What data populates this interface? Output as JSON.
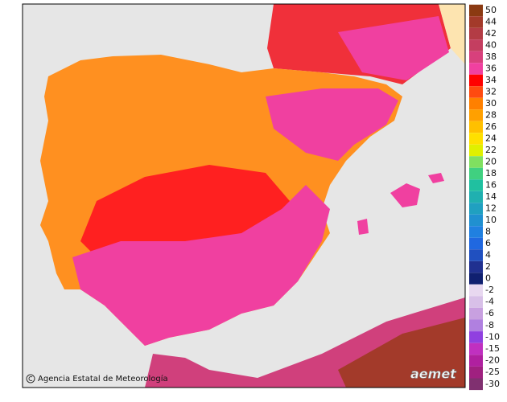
{
  "credit": "Agencia Estatal de Meteorología",
  "logo": "aemet",
  "legend": {
    "items": [
      {
        "label": 50,
        "color": "#8b3a12"
      },
      {
        "label": 44,
        "color": "#a33a2a"
      },
      {
        "label": 42,
        "color": "#b33c45"
      },
      {
        "label": 40,
        "color": "#c43e60"
      },
      {
        "label": 38,
        "color": "#d8407c"
      },
      {
        "label": 36,
        "color": "#f040a0"
      },
      {
        "label": 34,
        "color": "#ff0000"
      },
      {
        "label": 32,
        "color": "#ff4a10"
      },
      {
        "label": 30,
        "color": "#ff8000"
      },
      {
        "label": 28,
        "color": "#ffa000"
      },
      {
        "label": 26,
        "color": "#ffc000"
      },
      {
        "label": 24,
        "color": "#ffe000"
      },
      {
        "label": 22,
        "color": "#e0f000"
      },
      {
        "label": 20,
        "color": "#80e060"
      },
      {
        "label": 18,
        "color": "#40d080"
      },
      {
        "label": 16,
        "color": "#20c0a0"
      },
      {
        "label": 14,
        "color": "#20b0b0"
      },
      {
        "label": 12,
        "color": "#20a0c0"
      },
      {
        "label": 10,
        "color": "#2090d0"
      },
      {
        "label": 8,
        "color": "#2080e0"
      },
      {
        "label": 6,
        "color": "#2068e0"
      },
      {
        "label": 4,
        "color": "#2050c0"
      },
      {
        "label": 2,
        "color": "#203090"
      },
      {
        "label": 0,
        "color": "#102070"
      }
    ],
    "negative_items": [
      {
        "label": -2,
        "color": "#e8d8f0"
      },
      {
        "label": -4,
        "color": "#d8c0e8"
      },
      {
        "label": -6,
        "color": "#c8a0e0"
      },
      {
        "label": -8,
        "color": "#b080e0"
      },
      {
        "label": -10,
        "color": "#9040e0"
      },
      {
        "label": -15,
        "color": "#c030c0"
      },
      {
        "label": -20,
        "color": "#b020a0"
      },
      {
        "label": -25,
        "color": "#a02080"
      },
      {
        "label": -30,
        "color": "#803070"
      }
    ]
  }
}
